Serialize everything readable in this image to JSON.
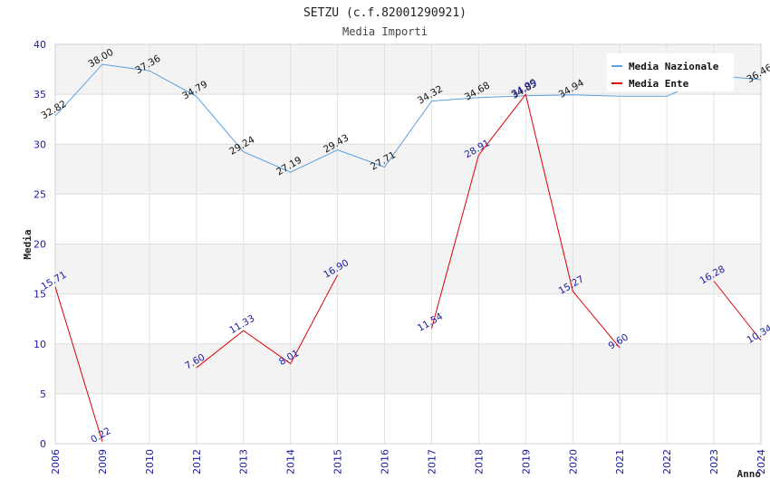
{
  "chart_data": {
    "type": "line",
    "title": "SETZU (c.f.82001290921)",
    "subtitle": "Media Importi",
    "xlabel": "Anno",
    "ylabel": "Media",
    "ylim": [
      0,
      40
    ],
    "yticks": [
      "0",
      "5",
      "10",
      "15",
      "20",
      "25",
      "30",
      "35",
      "40"
    ],
    "categories": [
      "2006",
      "2009",
      "2010",
      "2012",
      "2013",
      "2014",
      "2015",
      "2016",
      "2017",
      "2018",
      "2019",
      "2020",
      "2021",
      "2022",
      "2023",
      "2024"
    ],
    "grid": true,
    "legend_position": "top-right",
    "series": [
      {
        "name": "Media Nazionale",
        "color": "#5aa0e0",
        "label_color": "#111111",
        "values": [
          32.82,
          38.0,
          37.36,
          34.79,
          29.24,
          27.19,
          29.43,
          27.71,
          34.32,
          34.68,
          34.85,
          34.94,
          34.8,
          34.8,
          36.9,
          36.46
        ],
        "labels": [
          "32.82",
          "38.00",
          "37.36",
          "34.79",
          "29.24",
          "27.19",
          "29.43",
          "27.71",
          "34.32",
          "34.68",
          "34.85",
          "34.94",
          "",
          "",
          "",
          "36.46"
        ]
      },
      {
        "name": "Media Ente",
        "color": "#dd0000",
        "label_color": "#1a1aa6",
        "values": [
          15.71,
          0.22,
          null,
          7.6,
          11.33,
          8.01,
          16.9,
          null,
          11.54,
          28.91,
          34.99,
          15.27,
          9.6,
          null,
          16.28,
          10.34
        ],
        "labels": [
          "15.71",
          "0.22",
          "",
          "7.60",
          "11.33",
          "8.01",
          "16.90",
          "",
          "11.54",
          "28.91",
          "34.99",
          "15.27",
          "9.60",
          "",
          "16.28",
          "10.34"
        ]
      }
    ]
  }
}
